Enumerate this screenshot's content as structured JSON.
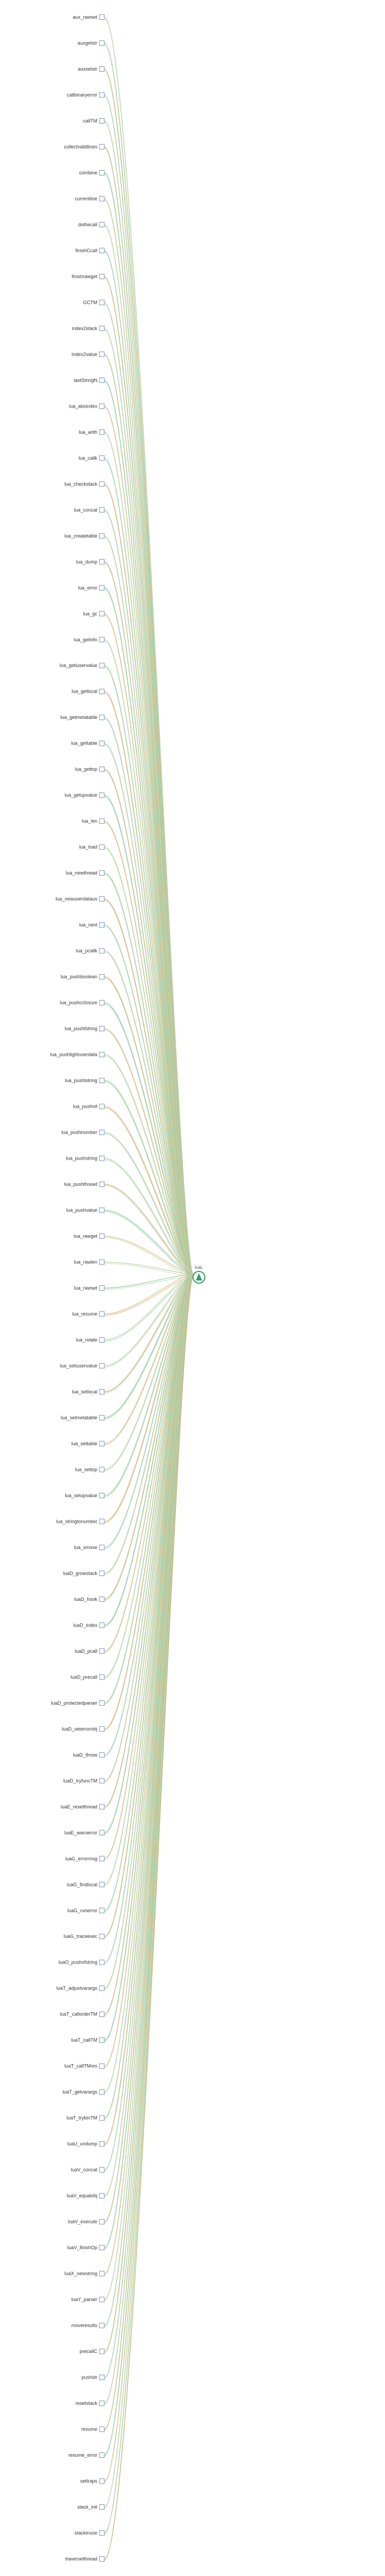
{
  "hub": {
    "label": "luaL"
  },
  "nodes": [
    "aux_rawset",
    "auxgetstr",
    "auxsetstr",
    "callbinaryerror",
    "callTM",
    "collectvalidlines",
    "combine",
    "currentline",
    "dothecall",
    "finishCcall",
    "finishrawget",
    "GCTM",
    "index2stack",
    "index2value",
    "lastStringN",
    "lua_absindex",
    "lua_arith",
    "lua_callk",
    "lua_checkstack",
    "lua_concat",
    "lua_createtable",
    "lua_dump",
    "lua_error",
    "lua_gc",
    "lua_getinfo",
    "lua_getiuservalue",
    "lua_getlocal",
    "lua_getmetatable",
    "lua_gettable",
    "lua_gettop",
    "lua_getupvalue",
    "lua_len",
    "lua_load",
    "lua_newthread",
    "lua_newuserdatauv",
    "lua_next",
    "lua_pcallk",
    "lua_pushboolean",
    "lua_pushcclosure",
    "lua_pushfstring",
    "lua_pushlightuserdata",
    "lua_pushlstring",
    "lua_pushnil",
    "lua_pushnumber",
    "lua_pushstring",
    "lua_pushthread",
    "lua_pushvalue",
    "lua_rawget",
    "lua_rawlen",
    "lua_rawset",
    "lua_resume",
    "lua_rotate",
    "lua_setiuservalue",
    "lua_setlocal",
    "lua_setmetatable",
    "lua_settable",
    "lua_settop",
    "lua_setupvalue",
    "lua_stringtonumber",
    "lua_xmove",
    "luaD_growstack",
    "luaD_hook",
    "luaD_index",
    "luaD_pcall",
    "luaD_precall",
    "luaD_protectedparser",
    "luaD_seterrorobj",
    "luaD_throw",
    "luaD_tryfuncTM",
    "luaE_resetthread",
    "luaE_warnerror",
    "luaG_errormsg",
    "luaG_findlocal",
    "luaG_runerror",
    "luaG_traceexec",
    "luaO_pushvfstring",
    "luaT_adjustvarargs",
    "luaT_callorderTM",
    "luaT_callTM",
    "luaT_callTMres",
    "luaT_getvarargs",
    "luaT_trybinTM",
    "luaU_undump",
    "luaV_concat",
    "luaV_equalobj",
    "luaV_execute",
    "luaV_finishOp",
    "luaX_newstring",
    "luaY_parser",
    "moveresults",
    "precallC",
    "pushstr",
    "resetstack",
    "resume",
    "resume_error",
    "settraps",
    "stack_init",
    "stackinuse",
    "traverselthread"
  ]
}
